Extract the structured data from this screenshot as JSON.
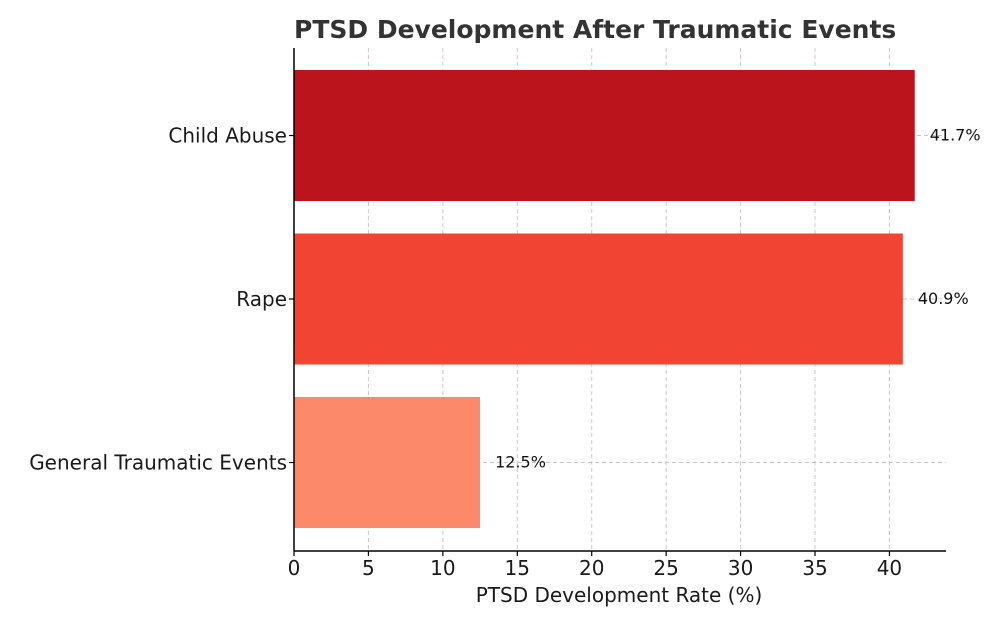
{
  "chart_data": {
    "type": "bar",
    "orientation": "horizontal",
    "title": "PTSD Development After Traumatic Events",
    "xlabel": "PTSD Development Rate (%)",
    "ylabel": "",
    "categories": [
      "Child Abuse",
      "Rape",
      "General Traumatic Events"
    ],
    "values": [
      41.7,
      40.9,
      12.5
    ],
    "value_labels": [
      "41.7%",
      "40.9%",
      "12.5%"
    ],
    "colors": [
      "#bb141c",
      "#f14433",
      "#fc8a6a"
    ],
    "xlim": [
      0,
      43.8
    ],
    "xticks": [
      0,
      5,
      10,
      15,
      20,
      25,
      30,
      35,
      40
    ],
    "xtick_labels": [
      "0",
      "5",
      "10",
      "15",
      "20",
      "25",
      "30",
      "35",
      "40"
    ],
    "grid": true,
    "legend": "none"
  }
}
